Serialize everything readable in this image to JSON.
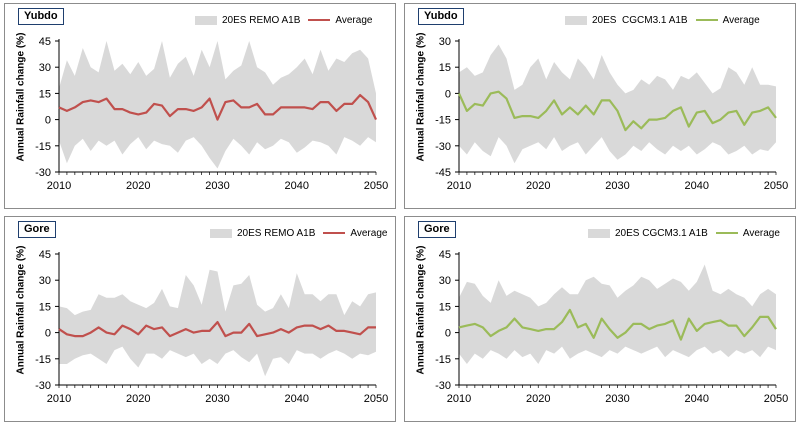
{
  "panels": [
    {
      "station": "Yubdo",
      "band_label": "20ES REMO A1B",
      "avg_label": "Average",
      "ylabel": "Annual Rainfall change (%)"
    },
    {
      "station": "Yubdo",
      "band_label": "20ES  CGCM3.1 A1B",
      "avg_label": "Average",
      "ylabel": "Annual Rainfall change (%)"
    },
    {
      "station": "Gore",
      "band_label": "20ES REMO A1B",
      "avg_label": "Average",
      "ylabel": "Annual Rainfall change (%)"
    },
    {
      "station": "Gore",
      "band_label": "20ES CGCM3.1 A1B",
      "avg_label": "Average",
      "ylabel": "Annual Rainfall change (%)"
    }
  ],
  "chart_data": [
    {
      "type": "area",
      "station": "Yubdo",
      "x": [
        2010,
        2011,
        2012,
        2013,
        2014,
        2015,
        2016,
        2017,
        2018,
        2019,
        2020,
        2021,
        2022,
        2023,
        2024,
        2025,
        2026,
        2027,
        2028,
        2029,
        2030,
        2031,
        2032,
        2033,
        2034,
        2035,
        2036,
        2037,
        2038,
        2039,
        2040,
        2041,
        2042,
        2043,
        2044,
        2045,
        2046,
        2047,
        2048,
        2049,
        2050
      ],
      "series": [
        {
          "name": "20ES REMO A1B",
          "kind": "band",
          "upper": [
            18,
            34,
            25,
            41,
            30,
            27,
            45,
            28,
            32,
            26,
            33,
            25,
            29,
            45,
            24,
            32,
            36,
            25,
            40,
            30,
            45,
            23,
            28,
            31,
            45,
            30,
            27,
            20,
            24,
            26,
            30,
            35,
            26,
            40,
            28,
            35,
            33,
            38,
            40,
            35,
            15
          ],
          "lower": [
            -12,
            -25,
            -15,
            -11,
            -18,
            -12,
            -15,
            -12,
            -20,
            -14,
            -10,
            -17,
            -12,
            -14,
            -15,
            -19,
            -12,
            -10,
            -15,
            -22,
            -28,
            -18,
            -11,
            -15,
            -20,
            -13,
            -17,
            -15,
            -11,
            -13,
            -19,
            -16,
            -12,
            -13,
            -15,
            -20,
            -10,
            -12,
            -15,
            -10,
            -13
          ]
        },
        {
          "name": "Average",
          "kind": "line",
          "values": [
            7,
            5,
            7,
            10,
            11,
            10,
            12,
            6,
            6,
            4,
            3,
            4,
            9,
            8,
            2,
            6,
            6,
            5,
            7,
            12,
            0,
            10,
            11,
            7,
            7,
            9,
            3,
            3,
            7,
            7,
            7,
            7,
            6,
            10,
            10,
            5,
            9,
            9,
            14,
            10,
            0
          ]
        }
      ],
      "xticks": [
        2010,
        2020,
        2030,
        2040,
        2050
      ],
      "yticks": [
        -30,
        -15,
        0,
        15,
        30,
        45
      ],
      "ylim": [
        -30,
        45
      ]
    },
    {
      "type": "area",
      "station": "Yubdo",
      "x": [
        2010,
        2011,
        2012,
        2013,
        2014,
        2015,
        2016,
        2017,
        2018,
        2019,
        2020,
        2021,
        2022,
        2023,
        2024,
        2025,
        2026,
        2027,
        2028,
        2029,
        2030,
        2031,
        2032,
        2033,
        2034,
        2035,
        2036,
        2037,
        2038,
        2039,
        2040,
        2041,
        2042,
        2043,
        2044,
        2045,
        2046,
        2047,
        2048,
        2049,
        2050
      ],
      "series": [
        {
          "name": "20ES  CGCM3.1 A1B",
          "kind": "band",
          "upper": [
            12,
            15,
            10,
            12,
            22,
            28,
            20,
            2,
            5,
            15,
            20,
            8,
            18,
            12,
            8,
            20,
            15,
            8,
            22,
            12,
            5,
            0,
            2,
            8,
            5,
            10,
            8,
            2,
            10,
            8,
            12,
            6,
            0,
            3,
            15,
            12,
            5,
            15,
            5,
            5,
            4
          ],
          "lower": [
            -30,
            -35,
            -28,
            -33,
            -36,
            -25,
            -30,
            -40,
            -32,
            -30,
            -28,
            -32,
            -25,
            -33,
            -30,
            -28,
            -35,
            -30,
            -25,
            -33,
            -38,
            -35,
            -30,
            -33,
            -28,
            -32,
            -35,
            -30,
            -33,
            -30,
            -35,
            -32,
            -28,
            -30,
            -35,
            -33,
            -30,
            -35,
            -32,
            -33,
            -28
          ]
        },
        {
          "name": "Average",
          "kind": "line",
          "values": [
            0,
            -10,
            -6,
            -7,
            0,
            1,
            -3,
            -14,
            -13,
            -13,
            -14,
            -10,
            -4,
            -12,
            -8,
            -12,
            -7,
            -12,
            -4,
            -4,
            -10,
            -21,
            -16,
            -20,
            -15,
            -15,
            -14,
            -10,
            -8,
            -19,
            -11,
            -10,
            -17,
            -15,
            -11,
            -10,
            -18,
            -11,
            -10,
            -8,
            -14
          ]
        }
      ],
      "xticks": [
        2010,
        2020,
        2030,
        2040,
        2050
      ],
      "yticks": [
        -45,
        -30,
        -15,
        0,
        15,
        30
      ],
      "ylim": [
        -45,
        30
      ]
    },
    {
      "type": "area",
      "station": "Gore",
      "x": [
        2010,
        2011,
        2012,
        2013,
        2014,
        2015,
        2016,
        2017,
        2018,
        2019,
        2020,
        2021,
        2022,
        2023,
        2024,
        2025,
        2026,
        2027,
        2028,
        2029,
        2030,
        2031,
        2032,
        2033,
        2034,
        2035,
        2036,
        2037,
        2038,
        2039,
        2040,
        2041,
        2042,
        2043,
        2044,
        2045,
        2046,
        2047,
        2048,
        2049,
        2050
      ],
      "series": [
        {
          "name": "20ES REMO A1B",
          "kind": "band",
          "upper": [
            15,
            14,
            10,
            12,
            13,
            22,
            20,
            20,
            22,
            18,
            16,
            14,
            17,
            25,
            15,
            14,
            33,
            27,
            16,
            36,
            35,
            12,
            27,
            28,
            33,
            16,
            12,
            14,
            22,
            14,
            34,
            22,
            22,
            18,
            22,
            22,
            10,
            18,
            15,
            22,
            23
          ],
          "lower": [
            -18,
            -18,
            -15,
            -13,
            -12,
            -15,
            -18,
            -10,
            -8,
            -15,
            -20,
            -12,
            -12,
            -15,
            -10,
            -12,
            -14,
            -12,
            -18,
            -15,
            -18,
            -12,
            -10,
            -14,
            -17,
            -12,
            -25,
            -15,
            -14,
            -18,
            -10,
            -12,
            -12,
            -15,
            -12,
            -10,
            -12,
            -15,
            -12,
            -13,
            -11
          ]
        },
        {
          "name": "Average",
          "kind": "line",
          "values": [
            2,
            -1,
            -2,
            -2,
            0,
            3,
            0,
            -1,
            4,
            2,
            -1,
            4,
            2,
            3,
            -2,
            0,
            2,
            0,
            1,
            1,
            6,
            -2,
            0,
            0,
            5,
            -2,
            -1,
            0,
            2,
            0,
            3,
            4,
            4,
            2,
            4,
            1,
            1,
            0,
            -1,
            3,
            3
          ]
        }
      ],
      "xticks": [
        2010,
        2020,
        2030,
        2040,
        2050
      ],
      "yticks": [
        -30,
        -15,
        0,
        15,
        30,
        45
      ],
      "ylim": [
        -30,
        45
      ]
    },
    {
      "type": "area",
      "station": "Gore",
      "x": [
        2010,
        2011,
        2012,
        2013,
        2014,
        2015,
        2016,
        2017,
        2018,
        2019,
        2020,
        2021,
        2022,
        2023,
        2024,
        2025,
        2026,
        2027,
        2028,
        2029,
        2030,
        2031,
        2032,
        2033,
        2034,
        2035,
        2036,
        2037,
        2038,
        2039,
        2040,
        2041,
        2042,
        2043,
        2044,
        2045,
        2046,
        2047,
        2048,
        2049,
        2050
      ],
      "series": [
        {
          "name": "20ES CGCM3.1 A1B",
          "kind": "band",
          "upper": [
            20,
            29,
            28,
            21,
            17,
            30,
            21,
            24,
            22,
            20,
            15,
            17,
            22,
            26,
            22,
            22,
            30,
            32,
            28,
            27,
            20,
            24,
            27,
            32,
            30,
            25,
            28,
            31,
            29,
            24,
            29,
            39,
            24,
            22,
            25,
            22,
            20,
            15,
            22,
            25,
            22
          ],
          "lower": [
            -12,
            -18,
            -12,
            -15,
            -10,
            -12,
            -15,
            -10,
            -14,
            -12,
            -18,
            -10,
            -12,
            -8,
            -15,
            -12,
            -10,
            -12,
            -14,
            -10,
            -12,
            -8,
            -10,
            -12,
            -10,
            -8,
            -14,
            -10,
            -12,
            -14,
            -10,
            -8,
            -12,
            -10,
            -14,
            -10,
            -12,
            -10,
            -14,
            -8,
            -10
          ]
        },
        {
          "name": "Average",
          "kind": "line",
          "values": [
            3,
            4,
            5,
            3,
            -2,
            1,
            3,
            8,
            3,
            2,
            1,
            2,
            2,
            6,
            13,
            3,
            5,
            -3,
            8,
            2,
            -3,
            0,
            5,
            5,
            2,
            4,
            5,
            7,
            -4,
            8,
            1,
            5,
            6,
            7,
            4,
            4,
            -2,
            3,
            9,
            9,
            2
          ]
        }
      ],
      "xticks": [
        2010,
        2020,
        2030,
        2040,
        2050
      ],
      "yticks": [
        -30,
        -15,
        0,
        15,
        30,
        45
      ],
      "ylim": [
        -30,
        45
      ]
    }
  ],
  "colors": {
    "band": "#d9d9d9",
    "remo_line": "#c0504d",
    "cgcm_line": "#9bbb59",
    "axis": "#000000"
  }
}
